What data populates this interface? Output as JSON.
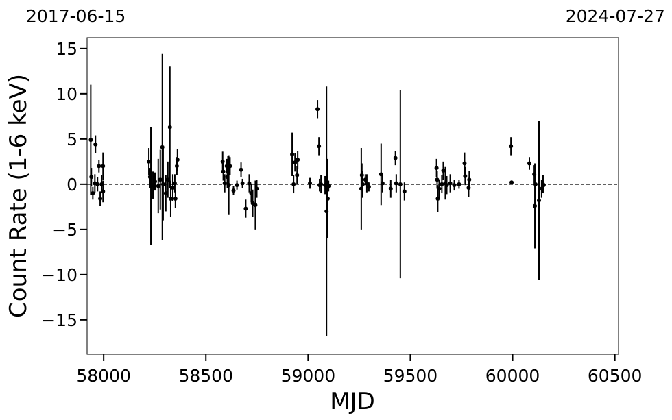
{
  "chart_data": {
    "type": "errorbar-scatter",
    "top_left_label": "2017-06-15",
    "top_right_label": "2024-07-27",
    "xlabel": "MJD",
    "ylabel": "Count Rate (1-6 keV)",
    "xlim": [
      57919,
      60518
    ],
    "ylim": [
      -18.8,
      16.2
    ],
    "xticks": [
      58000,
      58500,
      59000,
      59500,
      60000,
      60500
    ],
    "yticks": [
      {
        "value": -15,
        "label": "−15"
      },
      {
        "value": -10,
        "label": "−10"
      },
      {
        "value": -5,
        "label": "−5"
      },
      0,
      5,
      10,
      15
    ],
    "hline": 0,
    "hline_style": "dashed",
    "series": [
      {
        "color": "#000000",
        "x": [
          57937,
          57940,
          57947,
          57960,
          57957,
          57970,
          57977,
          57983,
          57990,
          57997,
          57997,
          58221,
          58227,
          58231,
          58241,
          58251,
          58267,
          58277,
          58287,
          58291,
          58304,
          58314,
          58324,
          58328,
          58338,
          58348,
          58358,
          58361,
          58351,
          58582,
          58585,
          58592,
          58602,
          58605,
          58608,
          58612,
          58618,
          58635,
          58652,
          58672,
          58679,
          58695,
          58712,
          58729,
          58742,
          58749,
          58722,
          58922,
          58929,
          58936,
          58946,
          58949,
          59009,
          59046,
          59053,
          59056,
          59063,
          59083,
          59090,
          59096,
          59100,
          59260,
          59263,
          59267,
          59280,
          59287,
          59297,
          59357,
          59364,
          59404,
          59427,
          59431,
          59451,
          59471,
          59628,
          59631,
          59634,
          59641,
          59654,
          59661,
          59671,
          59678,
          59695,
          59715,
          59738,
          59765,
          59768,
          59785,
          59788,
          59992,
          59995,
          60082,
          60106,
          60109,
          60112,
          60129,
          60142,
          60149,
          60152
        ],
        "values": [
          4.9,
          0.8,
          -1.0,
          4.4,
          0.1,
          0,
          2.0,
          -1.6,
          0,
          2.0,
          -0.8,
          2.5,
          0.8,
          -0.2,
          -0.1,
          0.3,
          -0.2,
          0.5,
          4.1,
          0,
          -1.0,
          0.5,
          6.3,
          -1.6,
          -0.4,
          0.1,
          2.0,
          2.7,
          -1.6,
          2.5,
          1.4,
          0.1,
          2.0,
          0.8,
          2.5,
          -0.1,
          2.0,
          -0.7,
          -0.1,
          1.6,
          0.1,
          -2.7,
          0.1,
          -2.1,
          -2.3,
          -0.5,
          -1.0,
          3.3,
          0,
          2.4,
          1.0,
          2.7,
          0.1,
          8.3,
          4.2,
          -0.1,
          0,
          -0.1,
          -3.0,
          -1.6,
          -0.2,
          -0.5,
          1.0,
          0,
          0.5,
          0.1,
          -0.3,
          1.1,
          0.1,
          -0.5,
          2.9,
          0.1,
          0,
          -0.8,
          1.8,
          0.5,
          -1.6,
          -0.5,
          0,
          1.5,
          0.1,
          -0.1,
          0.1,
          -0.1,
          0,
          2.3,
          0.9,
          -0.4,
          0.5,
          4.2,
          0.2,
          2.3,
          1.1,
          -2.4,
          0,
          -1.8,
          -0.5,
          0,
          -0.1
        ],
        "errors": [
          6.1,
          1,
          0.7,
          1,
          1,
          0.8,
          0.7,
          0.8,
          1,
          1.5,
          1.2,
          1.5,
          1,
          6.5,
          1.5,
          1,
          3,
          3.3,
          10.3,
          4,
          2,
          2,
          6.7,
          2,
          1.5,
          1,
          1,
          1.2,
          1,
          1.1,
          1,
          1,
          0.8,
          1.2,
          0.6,
          3.3,
          1,
          0.5,
          0.5,
          0.8,
          0.5,
          1,
          1,
          1.5,
          2.7,
          1,
          1,
          2.4,
          1,
          1,
          1,
          1,
          0.6,
          1,
          1,
          0.7,
          1,
          1,
          13.8,
          4.4,
          0.6,
          4.5,
          1.3,
          1.5,
          0.6,
          1,
          0.5,
          3.4,
          1,
          1,
          0.8,
          1,
          10.4,
          1,
          1,
          1,
          1.5,
          1,
          1,
          1,
          1.8,
          1,
          1,
          0.6,
          0.5,
          1.2,
          1,
          1,
          1,
          1,
          0.2,
          0.7,
          1,
          4.7,
          1,
          8.8,
          1,
          1,
          0.5
        ]
      }
    ]
  }
}
